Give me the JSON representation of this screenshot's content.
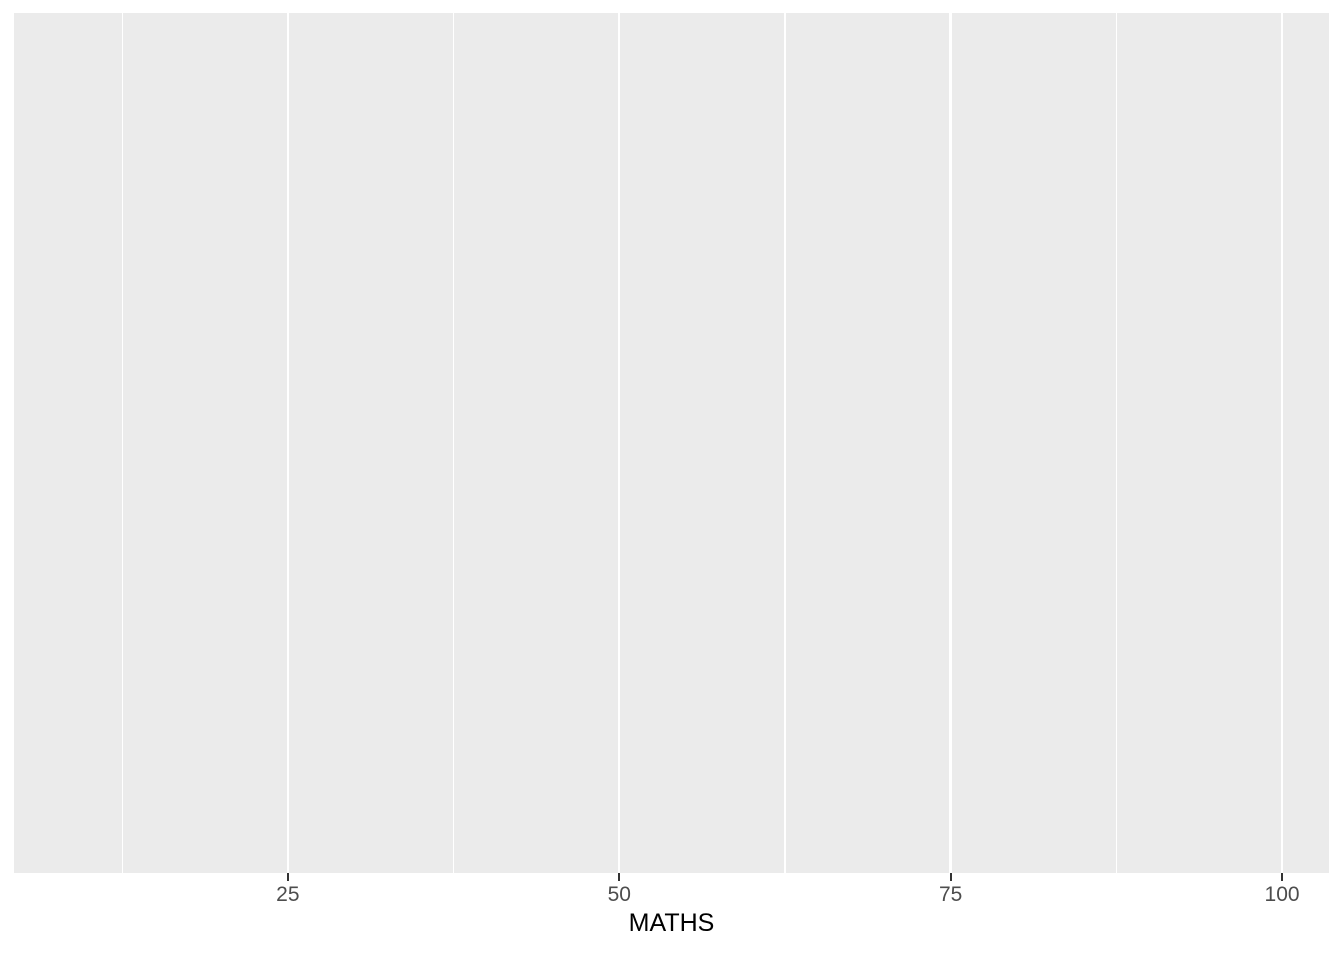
{
  "chart_data": {
    "type": "blank",
    "description": "Empty ggplot2 theme_gray panel with x axis only (no geoms, no y axis)",
    "title": "",
    "xlabel": "MATHS",
    "ylabel": "",
    "xlim": [
      4.34,
      103.54
    ],
    "x_major_breaks": [
      25,
      50,
      75,
      100
    ],
    "x_tick_labels": [
      "25",
      "50",
      "75",
      "100"
    ],
    "x_minor_breaks": [
      12.5,
      37.5,
      62.5,
      87.5
    ],
    "y_ticks": [],
    "series": [],
    "grid": "vertical gridlines only (major + minor), white on gray panel",
    "legend": "none"
  },
  "colors": {
    "figure_background": "#ffffff",
    "panel_background": "#ebebeb",
    "gridline": "#ffffff",
    "tick_mark": "#333333",
    "tick_label": "#4d4d4d",
    "axis_title": "#000000"
  }
}
